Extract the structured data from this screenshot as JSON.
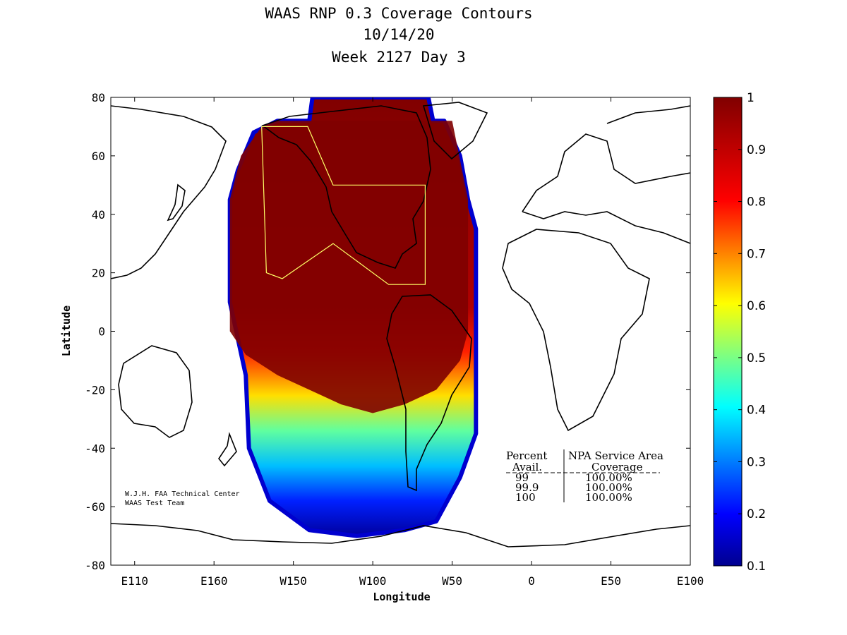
{
  "chart_data": {
    "type": "heatmap",
    "title": [
      "WAAS RNP 0.3 Coverage Contours",
      "10/14/20",
      "Week 2127 Day 3"
    ],
    "xlabel": "Longitude",
    "ylabel": "Latitude",
    "x_ticks": [
      "E110",
      "E160",
      "W150",
      "W100",
      "W50",
      "0",
      "E50",
      "E100"
    ],
    "x_tick_values": [
      -250,
      -200,
      -150,
      -100,
      -50,
      0,
      50,
      100
    ],
    "y_ticks": [
      "80",
      "60",
      "40",
      "20",
      "0",
      "-20",
      "-40",
      "-60",
      "-80"
    ],
    "y_tick_values": [
      80,
      60,
      40,
      20,
      0,
      -20,
      -40,
      -60,
      -80
    ],
    "xlim": [
      -265,
      100
    ],
    "ylim": [
      -80,
      80
    ],
    "colorbar": {
      "ticks": [
        "1",
        "0.9",
        "0.8",
        "0.7",
        "0.6",
        "0.5",
        "0.4",
        "0.3",
        "0.2",
        "0.1"
      ],
      "tick_values": [
        1,
        0.9,
        0.8,
        0.7,
        0.6,
        0.5,
        0.4,
        0.3,
        0.2,
        0.1
      ],
      "range": [
        0.1,
        1
      ],
      "colormap": "jet"
    },
    "coverage_region": {
      "boundary": [
        [
          -160,
          72
        ],
        [
          -140,
          72
        ],
        [
          -138,
          80
        ],
        [
          -65,
          80
        ],
        [
          -62,
          72
        ],
        [
          -55,
          72
        ],
        [
          -45,
          60
        ],
        [
          -40,
          45
        ],
        [
          -35,
          35
        ],
        [
          -35,
          -5
        ],
        [
          -35,
          -35
        ],
        [
          -45,
          -50
        ],
        [
          -60,
          -65
        ],
        [
          -80,
          -68
        ],
        [
          -110,
          -70
        ],
        [
          -140,
          -68
        ],
        [
          -165,
          -58
        ],
        [
          -178,
          -40
        ],
        [
          -180,
          -15
        ],
        [
          -190,
          10
        ],
        [
          -190,
          45
        ],
        [
          -185,
          55
        ],
        [
          -175,
          68
        ]
      ],
      "core_boundary": [
        [
          -190,
          0
        ],
        [
          -190,
          45
        ],
        [
          -183,
          60
        ],
        [
          -170,
          70
        ],
        [
          -160,
          72
        ],
        [
          -50,
          72
        ],
        [
          -40,
          45
        ],
        [
          -40,
          0
        ],
        [
          -45,
          -10
        ],
        [
          -60,
          -20
        ],
        [
          -80,
          -25
        ],
        [
          -100,
          -28
        ],
        [
          -120,
          -25
        ],
        [
          -140,
          -20
        ],
        [
          -160,
          -15
        ],
        [
          -180,
          -8
        ]
      ]
    },
    "service_area_boundary": [
      [
        -170,
        70
      ],
      [
        -141,
        70
      ],
      [
        -125,
        50
      ],
      [
        -67,
        50
      ],
      [
        -67,
        16
      ],
      [
        -90,
        16
      ],
      [
        -125,
        30
      ],
      [
        -157,
        18
      ],
      [
        -167,
        20
      ],
      [
        -170,
        70
      ]
    ],
    "table": {
      "headers": [
        "Percent",
        "NPA Service Area"
      ],
      "subheaders": [
        "Avail.",
        "Coverage"
      ],
      "rows": [
        [
          "99",
          "100.00%"
        ],
        [
          "99.9",
          "100.00%"
        ],
        [
          "100",
          "100.00%"
        ]
      ]
    },
    "credits": [
      "W.J.H. FAA Technical Center",
      "WAAS Test Team"
    ]
  }
}
